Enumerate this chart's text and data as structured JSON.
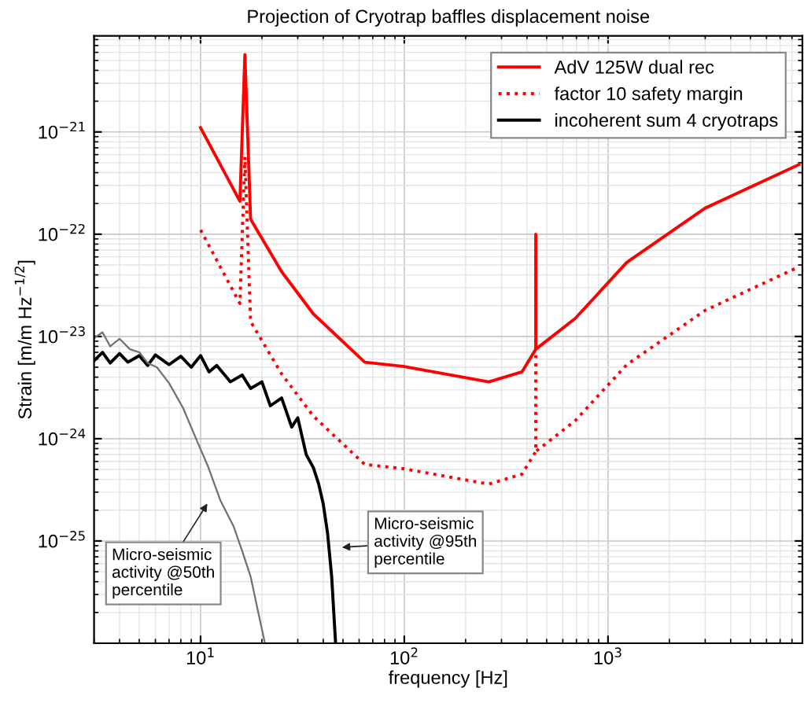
{
  "chart_data": {
    "type": "line",
    "title": "Projection of Cryotrap baffles displacement noise",
    "xlabel": "frequency [Hz]",
    "ylabel": "Strain [m/m Hz$^{−1/2}$]",
    "log": "xy",
    "grid": true,
    "legend": "top right",
    "xlim": [
      3,
      9000
    ],
    "ylim": [
      1e-26,
      8.7e-21
    ],
    "xticks": [
      {
        "value": 10,
        "label": "10$^{1}$"
      },
      {
        "value": 100,
        "label": "10$^{2}$"
      },
      {
        "value": 1000,
        "label": "10$^{3}$"
      }
    ],
    "yticks": [
      {
        "value": 1e-25,
        "label": "10$^{−25}$"
      },
      {
        "value": 1e-24,
        "label": "10$^{−24}$"
      },
      {
        "value": 1e-23,
        "label": "10$^{−23}$"
      },
      {
        "value": 1e-22,
        "label": "10$^{−22}$"
      },
      {
        "value": 1e-21,
        "label": "10$^{−21}$"
      }
    ],
    "series": [
      {
        "name": "AdV 125W dual rec",
        "color": "#ff0000",
        "line_style": "solid",
        "x": [
          10,
          15.6,
          16.5,
          17.6,
          25,
          35.8,
          64,
          98.6,
          260,
          378,
          442,
          442,
          442,
          690,
          1237,
          3000,
          8660
        ],
        "values": [
          1.1e-21,
          2.1e-22,
          5.7e-21,
          1.4e-22,
          4.3e-23,
          1.66e-23,
          5.6e-24,
          5.1e-24,
          3.6e-24,
          4.5e-24,
          7.5e-24,
          1e-22,
          7.5e-24,
          1.5e-23,
          5.3e-23,
          1.8e-22,
          4.8e-22
        ]
      },
      {
        "name": "factor 10 safety margin",
        "color": "#ff0000",
        "line_style": "dotted",
        "x": [
          10,
          15.6,
          16.5,
          17.6,
          25,
          35.8,
          64,
          98.6,
          260,
          378,
          442,
          442,
          442,
          690,
          1237,
          3000,
          8660
        ],
        "values": [
          1.1e-22,
          2.1e-23,
          5.7e-22,
          1.4e-23,
          4.3e-24,
          1.66e-24,
          5.6e-25,
          5.1e-25,
          3.6e-25,
          4.5e-25,
          7.5e-25,
          1e-23,
          7.5e-25,
          1.5e-24,
          5.3e-24,
          1.8e-23,
          4.8e-23
        ]
      },
      {
        "name": "incoherent sum 4 cryotraps",
        "color": "#000000",
        "line_style": "solid",
        "x": [
          3,
          3.3,
          3.6,
          4,
          4.4,
          5,
          5.5,
          6,
          7,
          8,
          9,
          10,
          11,
          12,
          14,
          16,
          17.6,
          20,
          22,
          25,
          28,
          30,
          33,
          35.8,
          38,
          40,
          42,
          44,
          46
        ],
        "values": [
          5.8e-24,
          7e-24,
          5.5e-24,
          6.8e-24,
          5.6e-24,
          6.5e-24,
          5.2e-24,
          6.6e-24,
          5.3e-24,
          6.4e-24,
          5e-24,
          6.5e-24,
          4.5e-24,
          5.2e-24,
          3.6e-24,
          4.2e-24,
          3.1e-24,
          3.6e-24,
          2.1e-24,
          2.5e-24,
          1.3e-24,
          1.6e-24,
          7e-25,
          5.2e-25,
          3.6e-25,
          2.3e-25,
          1.2e-25,
          4.5e-26,
          1e-26
        ]
      },
      {
        "color": "#707070",
        "line_style": "solid",
        "x": [
          3,
          3.3,
          3.6,
          4,
          4.5,
          5,
          5.5,
          6.1,
          7,
          8.2,
          9.5,
          10.9,
          12.5,
          14.5,
          16,
          17.6,
          19,
          20.7
        ],
        "values": [
          9.6e-24,
          1.1e-23,
          8e-24,
          9.5e-24,
          7.5e-24,
          7e-24,
          5.5e-24,
          5e-24,
          3.5e-24,
          2e-24,
          1e-24,
          5.3e-25,
          2.5e-25,
          1.4e-25,
          8e-26,
          4.5e-26,
          2.2e-26,
          1e-26
        ]
      }
    ],
    "annotations": [
      "Micro-seismic\nactivity @50th\npercentile",
      "Micro-seismic\nactivity @95th\npercentile"
    ]
  }
}
